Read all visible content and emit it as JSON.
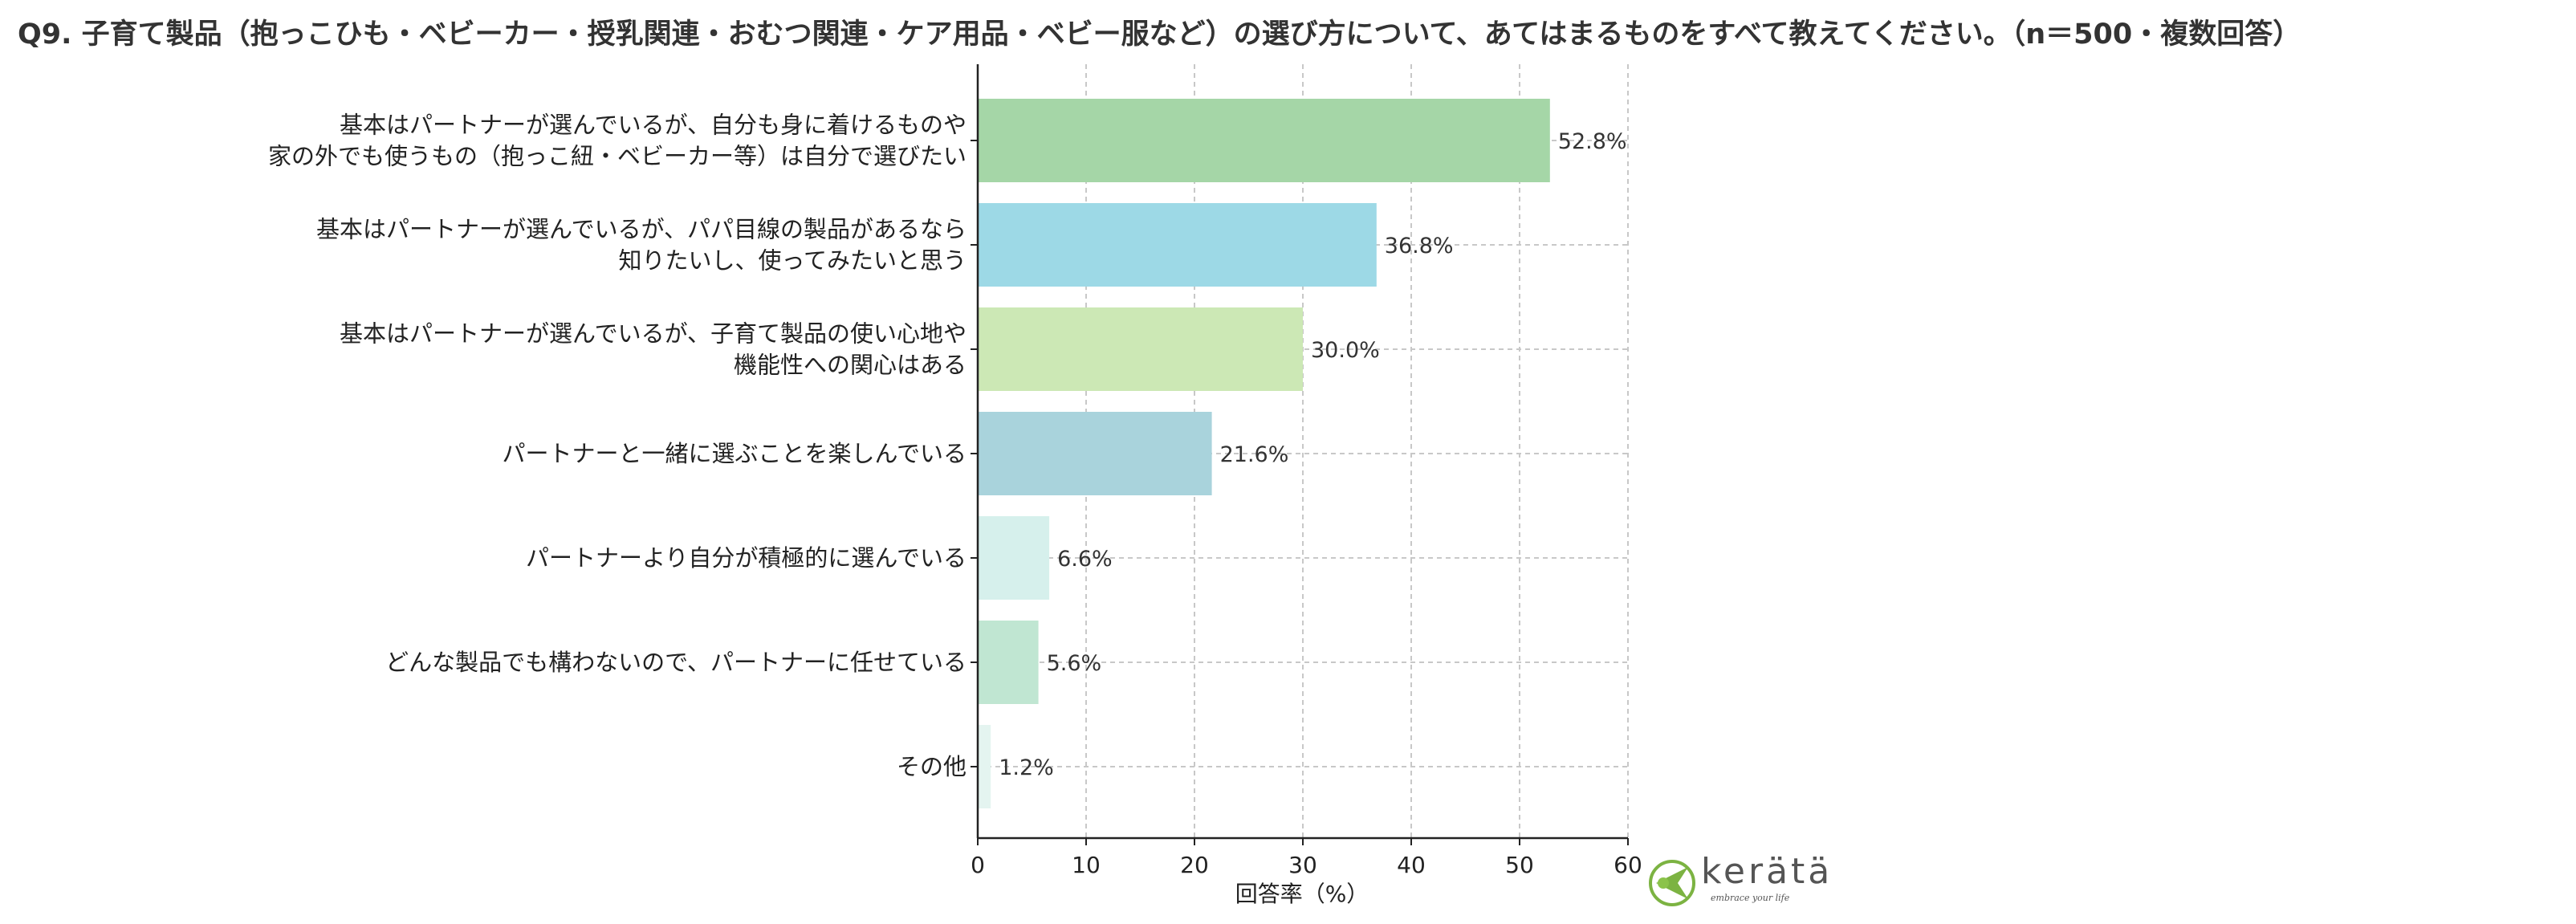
{
  "chart_data": {
    "type": "bar",
    "orientation": "horizontal",
    "title": "Q9. 子育て製品（抱っこひも・ベビーカー・授乳関連・おむつ関連・ケア用品・ベビー服など）の選び方について、あてはまるものをすべて教えてください。（n＝500・複数回答）",
    "xlabel": "回答率（%）",
    "ylabel": "",
    "xlim": [
      0,
      60
    ],
    "xticks": [
      0,
      10,
      20,
      30,
      40,
      50,
      60
    ],
    "grid": true,
    "categories": [
      [
        "基本はパートナーが選んでいるが、自分も身に着けるものや",
        "家の外でも使うもの（抱っこ紐・ベビーカー等）は自分で選びたい"
      ],
      [
        "基本はパートナーが選んでいるが、パパ目線の製品があるなら",
        "知りたいし、使ってみたいと思う"
      ],
      [
        "基本はパートナーが選んでいるが、子育て製品の使い心地や",
        "機能性への関心はある"
      ],
      [
        "パートナーと一緒に選ぶことを楽しんでいる"
      ],
      [
        "パートナーより自分が積極的に選んでいる"
      ],
      [
        "どんな製品でも構わないので、パートナーに任せている"
      ],
      [
        "その他"
      ]
    ],
    "values": [
      52.8,
      36.8,
      30.0,
      21.6,
      6.6,
      5.6,
      1.2
    ],
    "value_labels": [
      "52.8%",
      "36.8%",
      "30.0%",
      "21.6%",
      "6.6%",
      "5.6%",
      "1.2%"
    ],
    "colors": [
      "#a5d6a7",
      "#9dd9e6",
      "#cce8b5",
      "#a9d3dc",
      "#d6f0ec",
      "#c0e6d2",
      "#e4f4f0"
    ]
  },
  "logo": {
    "text": "kerätä",
    "tagline": "embrace your life",
    "color": "#7cb342"
  }
}
